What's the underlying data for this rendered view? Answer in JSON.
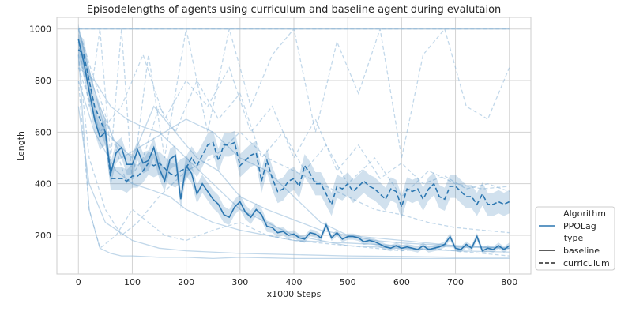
{
  "chart_data": {
    "type": "line",
    "title": "Episodelengths of agents using curriculum and baseline agent during evalutaion",
    "xlabel": "x1000 Steps",
    "ylabel": "Length",
    "xlim": [
      -40,
      840
    ],
    "ylim": [
      50,
      1045
    ],
    "xticks": [
      0,
      100,
      200,
      300,
      400,
      500,
      600,
      700,
      800
    ],
    "yticks": [
      200,
      400,
      600,
      800,
      1000
    ],
    "grid": true,
    "legend": {
      "placement": "right-outside-bottom",
      "title1": "Algorithm",
      "algorithm_label": "PPOLag",
      "title2": "type",
      "baseline_label": "baseline",
      "curriculum_label": "curriculum"
    },
    "colors": {
      "line": "#2c77b1",
      "individual": "#8fb8d8",
      "band": "#2c77b1",
      "grid": "#d3d3d3",
      "axes_edge": "#cccccc",
      "text": "#262626"
    },
    "series": [
      {
        "name": "baseline",
        "style": "solid",
        "x": [
          0,
          10,
          20,
          30,
          40,
          50,
          60,
          70,
          80,
          90,
          100,
          110,
          120,
          130,
          140,
          150,
          160,
          170,
          180,
          190,
          200,
          210,
          220,
          230,
          240,
          250,
          260,
          270,
          280,
          290,
          300,
          310,
          320,
          330,
          340,
          350,
          360,
          370,
          380,
          390,
          400,
          410,
          420,
          430,
          440,
          450,
          460,
          470,
          480,
          490,
          500,
          510,
          520,
          530,
          540,
          550,
          560,
          570,
          580,
          590,
          600,
          610,
          620,
          630,
          640,
          650,
          660,
          670,
          680,
          690,
          700,
          710,
          720,
          730,
          740,
          750,
          760,
          770,
          780,
          790,
          800
        ],
        "y": [
          960,
          870,
          760,
          650,
          580,
          600,
          440,
          520,
          540,
          475,
          475,
          530,
          480,
          490,
          540,
          460,
          410,
          495,
          510,
          340,
          470,
          440,
          360,
          400,
          370,
          340,
          320,
          280,
          270,
          310,
          330,
          290,
          270,
          300,
          280,
          235,
          230,
          210,
          215,
          200,
          205,
          190,
          185,
          210,
          205,
          190,
          240,
          190,
          210,
          185,
          195,
          195,
          190,
          175,
          180,
          175,
          165,
          155,
          150,
          160,
          150,
          155,
          150,
          145,
          160,
          145,
          150,
          155,
          165,
          195,
          150,
          145,
          165,
          150,
          195,
          140,
          150,
          145,
          160,
          145,
          160
        ],
        "ci_halfwidth": [
          60,
          60,
          55,
          50,
          50,
          50,
          45,
          40,
          40,
          40,
          40,
          40,
          40,
          40,
          40,
          40,
          40,
          40,
          40,
          40,
          40,
          38,
          36,
          35,
          35,
          35,
          35,
          32,
          30,
          30,
          30,
          28,
          26,
          25,
          24,
          22,
          20,
          18,
          16,
          15,
          15,
          14,
          14,
          14,
          14,
          14,
          14,
          12,
          12,
          12,
          12,
          12,
          12,
          12,
          12,
          12,
          12,
          12,
          12,
          12,
          12,
          12,
          12,
          12,
          12,
          12,
          12,
          12,
          12,
          14,
          12,
          12,
          12,
          12,
          14,
          12,
          12,
          12,
          12,
          12,
          12
        ]
      },
      {
        "name": "curriculum",
        "style": "dashed",
        "x": [
          0,
          10,
          20,
          30,
          40,
          50,
          60,
          70,
          80,
          90,
          100,
          110,
          120,
          130,
          140,
          150,
          160,
          170,
          180,
          190,
          200,
          210,
          220,
          230,
          240,
          250,
          260,
          270,
          280,
          290,
          300,
          310,
          320,
          330,
          340,
          350,
          360,
          370,
          380,
          390,
          400,
          410,
          420,
          430,
          440,
          450,
          460,
          470,
          480,
          490,
          500,
          510,
          520,
          530,
          540,
          550,
          560,
          570,
          580,
          590,
          600,
          610,
          620,
          630,
          640,
          650,
          660,
          670,
          680,
          690,
          700,
          710,
          720,
          730,
          740,
          750,
          760,
          770,
          780,
          790,
          800
        ],
        "y": [
          920,
          900,
          800,
          700,
          650,
          600,
          420,
          420,
          420,
          410,
          430,
          430,
          450,
          480,
          470,
          480,
          460,
          440,
          430,
          450,
          460,
          500,
          470,
          510,
          550,
          560,
          490,
          550,
          550,
          560,
          470,
          490,
          510,
          520,
          410,
          490,
          420,
          370,
          380,
          410,
          420,
          390,
          470,
          440,
          400,
          400,
          360,
          320,
          390,
          380,
          400,
          370,
          390,
          410,
          390,
          380,
          360,
          340,
          380,
          370,
          310,
          380,
          370,
          380,
          340,
          380,
          400,
          350,
          340,
          390,
          390,
          370,
          350,
          350,
          320,
          360,
          320,
          320,
          330,
          320,
          330
        ],
        "ci_halfwidth": [
          60,
          60,
          55,
          50,
          50,
          50,
          45,
          45,
          45,
          45,
          45,
          45,
          45,
          45,
          45,
          45,
          45,
          45,
          45,
          45,
          45,
          45,
          45,
          45,
          45,
          45,
          45,
          45,
          45,
          45,
          45,
          45,
          45,
          45,
          45,
          45,
          45,
          45,
          45,
          45,
          45,
          45,
          45,
          45,
          45,
          45,
          45,
          45,
          45,
          45,
          45,
          45,
          45,
          45,
          45,
          45,
          45,
          45,
          45,
          45,
          45,
          45,
          45,
          45,
          45,
          45,
          45,
          45,
          45,
          45,
          45,
          45,
          45,
          45,
          45,
          45,
          45,
          45,
          45,
          45,
          45
        ]
      }
    ],
    "individual_runs": [
      {
        "type": "baseline",
        "x": [
          0,
          10,
          20,
          30,
          40,
          60,
          80,
          100,
          120,
          150,
          200,
          250,
          300,
          400,
          500,
          600,
          700,
          800
        ],
        "y": [
          1000,
          1000,
          1000,
          1000,
          1000,
          1000,
          1000,
          1000,
          1000,
          1000,
          1000,
          1000,
          1000,
          1000,
          1000,
          1000,
          1000,
          1000
        ]
      },
      {
        "type": "baseline",
        "x": [
          0,
          20,
          40,
          60,
          80,
          100,
          150,
          200,
          250,
          300,
          400,
          500,
          600,
          700,
          800
        ],
        "y": [
          900,
          300,
          150,
          130,
          120,
          120,
          115,
          115,
          110,
          115,
          110,
          110,
          110,
          110,
          110
        ]
      },
      {
        "type": "baseline",
        "x": [
          0,
          30,
          60,
          90,
          120,
          150,
          200,
          250,
          300,
          350,
          400,
          500,
          600,
          700,
          800
        ],
        "y": [
          850,
          800,
          700,
          650,
          620,
          600,
          500,
          400,
          300,
          250,
          200,
          160,
          150,
          140,
          135
        ]
      },
      {
        "type": "baseline",
        "x": [
          0,
          40,
          80,
          120,
          160,
          200,
          250,
          300,
          350,
          400,
          450,
          500,
          600,
          700,
          800
        ],
        "y": [
          950,
          700,
          500,
          550,
          600,
          650,
          600,
          500,
          450,
          350,
          250,
          200,
          180,
          160,
          150
        ]
      },
      {
        "type": "baseline",
        "x": [
          0,
          20,
          50,
          100,
          150,
          200,
          300,
          400,
          500,
          600,
          700,
          800
        ],
        "y": [
          700,
          400,
          250,
          180,
          150,
          140,
          130,
          125,
          120,
          118,
          115,
          115
        ]
      },
      {
        "type": "baseline",
        "x": [
          0,
          50,
          100,
          140,
          180,
          220,
          260,
          300,
          350,
          400,
          450,
          500,
          550,
          600,
          700,
          800
        ],
        "y": [
          1000,
          600,
          500,
          700,
          600,
          500,
          450,
          350,
          300,
          260,
          220,
          200,
          180,
          170,
          160,
          150
        ]
      },
      {
        "type": "baseline",
        "x": [
          0,
          30,
          70,
          100,
          130,
          170,
          200,
          250,
          300,
          350,
          400,
          500,
          600,
          700,
          800
        ],
        "y": [
          800,
          600,
          450,
          400,
          380,
          350,
          300,
          250,
          220,
          200,
          180,
          170,
          160,
          155,
          150
        ]
      },
      {
        "type": "curriculum",
        "x": [
          0,
          20,
          40,
          60,
          80,
          100,
          120,
          160,
          200,
          250,
          300,
          350,
          400,
          500,
          600,
          700,
          800
        ],
        "y": [
          1000,
          1000,
          1000,
          1000,
          1000,
          1000,
          1000,
          1000,
          1000,
          1000,
          1000,
          1000,
          1000,
          1000,
          1000,
          1000,
          1000
        ]
      },
      {
        "type": "curriculum",
        "x": [
          0,
          20,
          40,
          60,
          80,
          100,
          130,
          160,
          200,
          240,
          280,
          320,
          360,
          400,
          440,
          480,
          520,
          560,
          600,
          640,
          680,
          720,
          760,
          800
        ],
        "y": [
          950,
          700,
          1000,
          500,
          1000,
          400,
          900,
          500,
          1000,
          600,
          1000,
          700,
          900,
          1000,
          600,
          950,
          750,
          1000,
          500,
          900,
          1000,
          700,
          650,
          850
        ]
      },
      {
        "type": "curriculum",
        "x": [
          0,
          20,
          50,
          80,
          110,
          150,
          200,
          250,
          300,
          350,
          400,
          450,
          500,
          550,
          600,
          650,
          700,
          750,
          800
        ],
        "y": [
          900,
          500,
          300,
          200,
          250,
          350,
          450,
          500,
          600,
          500,
          450,
          400,
          350,
          300,
          280,
          250,
          230,
          220,
          210
        ]
      },
      {
        "type": "curriculum",
        "x": [
          0,
          30,
          60,
          90,
          120,
          150,
          180,
          220,
          260,
          300,
          340,
          380,
          420,
          460,
          500,
          550,
          600,
          650,
          700,
          750,
          800
        ],
        "y": [
          1000,
          800,
          600,
          400,
          500,
          700,
          600,
          800,
          650,
          750,
          500,
          600,
          450,
          550,
          400,
          500,
          350,
          450,
          400,
          380,
          390
        ]
      },
      {
        "type": "curriculum",
        "x": [
          0,
          20,
          40,
          70,
          100,
          130,
          160,
          200,
          250,
          300,
          350,
          400,
          450,
          500,
          550,
          600,
          650,
          700,
          750,
          800
        ],
        "y": [
          800,
          300,
          150,
          200,
          300,
          250,
          200,
          180,
          220,
          250,
          200,
          180,
          170,
          160,
          150,
          140,
          150,
          140,
          130,
          120
        ]
      },
      {
        "type": "curriculum",
        "x": [
          0,
          40,
          80,
          120,
          160,
          200,
          240,
          280,
          320,
          360,
          400,
          440,
          480,
          520,
          560,
          600,
          640,
          680,
          720,
          760,
          800
        ],
        "y": [
          850,
          600,
          700,
          900,
          650,
          800,
          700,
          850,
          600,
          700,
          500,
          650,
          450,
          550,
          420,
          480,
          400,
          430,
          380,
          400,
          370
        ]
      }
    ]
  }
}
